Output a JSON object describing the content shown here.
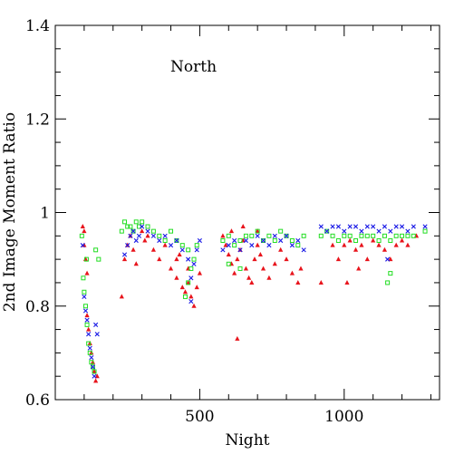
{
  "chart_data": {
    "type": "scatter",
    "title": "",
    "annotation": "North",
    "xlabel": "Night",
    "ylabel": "2nd Image Moment Ratio",
    "xlim": [
      0,
      1330
    ],
    "ylim": [
      0.6,
      1.4
    ],
    "x_ticks": [
      500,
      1000
    ],
    "x_tick_labels": [
      "500",
      "1000"
    ],
    "y_ticks": [
      0.6,
      0.8,
      1.0,
      1.2,
      1.4
    ],
    "y_tick_labels": [
      "0.6",
      "0.8",
      "1",
      "1.2",
      "1.4"
    ],
    "grid": false,
    "legend": "none",
    "series_colors": {
      "red": "#e8141c",
      "green": "#22dd22",
      "blue": "#1a1ae6"
    },
    "series": [
      {
        "marker": "triangle",
        "color": "#e8141c",
        "points": [
          [
            95,
            0.97
          ],
          [
            100,
            0.93
          ],
          [
            105,
            0.9
          ],
          [
            110,
            0.78
          ],
          [
            115,
            0.75
          ],
          [
            120,
            0.72
          ],
          [
            125,
            0.7
          ],
          [
            130,
            0.68
          ],
          [
            135,
            0.66
          ],
          [
            140,
            0.64
          ],
          [
            145,
            0.65
          ],
          [
            100,
            0.96
          ],
          [
            110,
            0.87
          ],
          [
            230,
            0.82
          ],
          [
            240,
            0.9
          ],
          [
            250,
            0.93
          ],
          [
            260,
            0.95
          ],
          [
            270,
            0.92
          ],
          [
            280,
            0.89
          ],
          [
            300,
            0.96
          ],
          [
            310,
            0.94
          ],
          [
            320,
            0.95
          ],
          [
            340,
            0.92
          ],
          [
            360,
            0.9
          ],
          [
            380,
            0.93
          ],
          [
            400,
            0.88
          ],
          [
            420,
            0.86
          ],
          [
            440,
            0.84
          ],
          [
            450,
            0.83
          ],
          [
            460,
            0.85
          ],
          [
            470,
            0.82
          ],
          [
            480,
            0.8
          ],
          [
            490,
            0.84
          ],
          [
            500,
            0.87
          ],
          [
            460,
            0.88
          ],
          [
            430,
            0.91
          ],
          [
            420,
            0.9
          ],
          [
            580,
            0.95
          ],
          [
            590,
            0.93
          ],
          [
            600,
            0.91
          ],
          [
            610,
            0.89
          ],
          [
            620,
            0.87
          ],
          [
            630,
            0.9
          ],
          [
            640,
            0.92
          ],
          [
            650,
            0.94
          ],
          [
            660,
            0.88
          ],
          [
            670,
            0.86
          ],
          [
            680,
            0.85
          ],
          [
            690,
            0.9
          ],
          [
            700,
            0.93
          ],
          [
            710,
            0.91
          ],
          [
            720,
            0.88
          ],
          [
            740,
            0.86
          ],
          [
            760,
            0.89
          ],
          [
            780,
            0.92
          ],
          [
            800,
            0.9
          ],
          [
            820,
            0.87
          ],
          [
            840,
            0.85
          ],
          [
            850,
            0.88
          ],
          [
            630,
            0.73
          ],
          [
            610,
            0.96
          ],
          [
            650,
            0.97
          ],
          [
            700,
            0.96
          ],
          [
            920,
            0.85
          ],
          [
            960,
            0.93
          ],
          [
            980,
            0.9
          ],
          [
            1000,
            0.93
          ],
          [
            1020,
            0.94
          ],
          [
            1040,
            0.92
          ],
          [
            1060,
            0.93
          ],
          [
            1080,
            0.9
          ],
          [
            1100,
            0.94
          ],
          [
            1120,
            0.93
          ],
          [
            1140,
            0.92
          ],
          [
            1160,
            0.9
          ],
          [
            1180,
            0.93
          ],
          [
            1200,
            0.94
          ],
          [
            1220,
            0.93
          ],
          [
            1250,
            0.95
          ],
          [
            1010,
            0.85
          ],
          [
            1050,
            0.88
          ]
        ]
      },
      {
        "marker": "square",
        "color": "#22dd22",
        "points": [
          [
            92,
            0.95
          ],
          [
            97,
            0.86
          ],
          [
            100,
            0.83
          ],
          [
            105,
            0.8
          ],
          [
            110,
            0.76
          ],
          [
            115,
            0.72
          ],
          [
            120,
            0.7
          ],
          [
            125,
            0.68
          ],
          [
            130,
            0.67
          ],
          [
            135,
            0.66
          ],
          [
            108,
            0.9
          ],
          [
            140,
            0.92
          ],
          [
            150,
            0.9
          ],
          [
            230,
            0.96
          ],
          [
            240,
            0.98
          ],
          [
            250,
            0.97
          ],
          [
            260,
            0.97
          ],
          [
            270,
            0.96
          ],
          [
            280,
            0.98
          ],
          [
            290,
            0.97
          ],
          [
            300,
            0.98
          ],
          [
            320,
            0.97
          ],
          [
            340,
            0.96
          ],
          [
            360,
            0.95
          ],
          [
            380,
            0.94
          ],
          [
            400,
            0.96
          ],
          [
            420,
            0.94
          ],
          [
            440,
            0.93
          ],
          [
            460,
            0.92
          ],
          [
            470,
            0.88
          ],
          [
            480,
            0.9
          ],
          [
            490,
            0.93
          ],
          [
            450,
            0.82
          ],
          [
            460,
            0.85
          ],
          [
            580,
            0.94
          ],
          [
            600,
            0.95
          ],
          [
            620,
            0.93
          ],
          [
            640,
            0.94
          ],
          [
            660,
            0.95
          ],
          [
            680,
            0.95
          ],
          [
            700,
            0.96
          ],
          [
            720,
            0.94
          ],
          [
            740,
            0.95
          ],
          [
            760,
            0.94
          ],
          [
            780,
            0.96
          ],
          [
            800,
            0.95
          ],
          [
            820,
            0.94
          ],
          [
            840,
            0.93
          ],
          [
            860,
            0.95
          ],
          [
            600,
            0.89
          ],
          [
            640,
            0.88
          ],
          [
            920,
            0.95
          ],
          [
            940,
            0.96
          ],
          [
            960,
            0.95
          ],
          [
            980,
            0.94
          ],
          [
            1000,
            0.95
          ],
          [
            1020,
            0.95
          ],
          [
            1040,
            0.94
          ],
          [
            1060,
            0.95
          ],
          [
            1080,
            0.95
          ],
          [
            1100,
            0.95
          ],
          [
            1120,
            0.94
          ],
          [
            1140,
            0.95
          ],
          [
            1160,
            0.94
          ],
          [
            1180,
            0.95
          ],
          [
            1200,
            0.95
          ],
          [
            1220,
            0.95
          ],
          [
            1240,
            0.95
          ],
          [
            1280,
            0.96
          ],
          [
            1150,
            0.85
          ],
          [
            1160,
            0.87
          ]
        ]
      },
      {
        "marker": "cross",
        "color": "#1a1ae6",
        "points": [
          [
            95,
            0.93
          ],
          [
            100,
            0.82
          ],
          [
            105,
            0.79
          ],
          [
            110,
            0.77
          ],
          [
            115,
            0.74
          ],
          [
            120,
            0.71
          ],
          [
            125,
            0.69
          ],
          [
            130,
            0.67
          ],
          [
            135,
            0.65
          ],
          [
            140,
            0.76
          ],
          [
            145,
            0.74
          ],
          [
            240,
            0.91
          ],
          [
            250,
            0.93
          ],
          [
            260,
            0.95
          ],
          [
            270,
            0.96
          ],
          [
            280,
            0.94
          ],
          [
            290,
            0.95
          ],
          [
            300,
            0.97
          ],
          [
            320,
            0.96
          ],
          [
            340,
            0.95
          ],
          [
            360,
            0.94
          ],
          [
            380,
            0.95
          ],
          [
            400,
            0.93
          ],
          [
            420,
            0.94
          ],
          [
            440,
            0.92
          ],
          [
            460,
            0.9
          ],
          [
            470,
            0.86
          ],
          [
            480,
            0.89
          ],
          [
            490,
            0.92
          ],
          [
            500,
            0.94
          ],
          [
            470,
            0.81
          ],
          [
            580,
            0.92
          ],
          [
            600,
            0.93
          ],
          [
            620,
            0.94
          ],
          [
            640,
            0.92
          ],
          [
            660,
            0.94
          ],
          [
            680,
            0.93
          ],
          [
            700,
            0.95
          ],
          [
            720,
            0.94
          ],
          [
            740,
            0.93
          ],
          [
            760,
            0.95
          ],
          [
            780,
            0.94
          ],
          [
            800,
            0.95
          ],
          [
            820,
            0.93
          ],
          [
            840,
            0.94
          ],
          [
            860,
            0.92
          ],
          [
            920,
            0.97
          ],
          [
            940,
            0.96
          ],
          [
            960,
            0.97
          ],
          [
            980,
            0.97
          ],
          [
            1000,
            0.96
          ],
          [
            1020,
            0.97
          ],
          [
            1040,
            0.97
          ],
          [
            1060,
            0.96
          ],
          [
            1080,
            0.97
          ],
          [
            1100,
            0.97
          ],
          [
            1120,
            0.96
          ],
          [
            1140,
            0.97
          ],
          [
            1160,
            0.96
          ],
          [
            1180,
            0.97
          ],
          [
            1200,
            0.97
          ],
          [
            1220,
            0.96
          ],
          [
            1240,
            0.97
          ],
          [
            1280,
            0.97
          ],
          [
            1150,
            0.9
          ]
        ]
      }
    ]
  }
}
